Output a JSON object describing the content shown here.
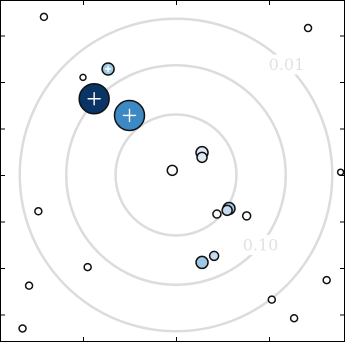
{
  "chart_data": {
    "type": "scatter",
    "title": "",
    "xlabel": "",
    "ylabel": "",
    "xlim": [
      -1.88,
      1.88
    ],
    "ylim": [
      -1.88,
      1.88
    ],
    "xticks": [
      -1.0,
      0.0,
      1.0
    ],
    "yticks": [
      -1.5,
      -1.0,
      -0.5,
      0.0,
      0.5,
      1.0,
      1.5
    ],
    "grid": false,
    "contours": [
      {
        "radius": 0.65,
        "label": ""
      },
      {
        "radius": 1.18,
        "label": "0.10"
      },
      {
        "radius": 1.68,
        "label": "0.01"
      }
    ],
    "contour_color": "#dcdcdc",
    "points": [
      {
        "x": -1.42,
        "y": 1.7,
        "size": 3.5,
        "color": "#ffffff"
      },
      {
        "x": 1.42,
        "y": 1.58,
        "size": 3.5,
        "color": "#ffffff"
      },
      {
        "x": -1.0,
        "y": 1.05,
        "size": 3.0,
        "color": "#ffffff"
      },
      {
        "x": -0.73,
        "y": 1.14,
        "size": 6.0,
        "color": "#9ec8e6",
        "marker": "cross"
      },
      {
        "x": -0.88,
        "y": 0.82,
        "size": 15.0,
        "color": "#0a3366",
        "marker": "cross"
      },
      {
        "x": -0.5,
        "y": 0.64,
        "size": 15.0,
        "color": "#3d89c4",
        "marker": "cross"
      },
      {
        "x": 0.28,
        "y": 0.24,
        "size": 6.0,
        "color": "#deebf7"
      },
      {
        "x": 0.28,
        "y": 0.19,
        "size": 5.0,
        "color": "#deebf7"
      },
      {
        "x": -0.04,
        "y": 0.05,
        "size": 5.0,
        "color": "#ffffff"
      },
      {
        "x": 1.77,
        "y": 0.03,
        "size": 3.0,
        "color": "#ffffff"
      },
      {
        "x": 0.57,
        "y": -0.36,
        "size": 6.0,
        "color": "#9ec8e6"
      },
      {
        "x": 0.55,
        "y": -0.38,
        "size": 5.0,
        "color": "#c6dbef"
      },
      {
        "x": 0.44,
        "y": -0.42,
        "size": 4.0,
        "color": "#ffffff"
      },
      {
        "x": 0.76,
        "y": -0.44,
        "size": 4.0,
        "color": "#ffffff"
      },
      {
        "x": -1.48,
        "y": -0.39,
        "size": 3.5,
        "color": "#ffffff"
      },
      {
        "x": 0.41,
        "y": -0.87,
        "size": 4.5,
        "color": "#c6dbef"
      },
      {
        "x": 0.28,
        "y": -0.94,
        "size": 6.0,
        "color": "#9ec8e6"
      },
      {
        "x": -0.95,
        "y": -0.99,
        "size": 3.5,
        "color": "#ffffff"
      },
      {
        "x": 1.62,
        "y": -1.13,
        "size": 3.5,
        "color": "#ffffff"
      },
      {
        "x": -1.58,
        "y": -1.19,
        "size": 3.5,
        "color": "#ffffff"
      },
      {
        "x": 1.03,
        "y": -1.34,
        "size": 3.5,
        "color": "#ffffff"
      },
      {
        "x": 1.27,
        "y": -1.54,
        "size": 3.5,
        "color": "#ffffff"
      },
      {
        "x": -1.65,
        "y": -1.65,
        "size": 3.5,
        "color": "#ffffff"
      }
    ]
  }
}
